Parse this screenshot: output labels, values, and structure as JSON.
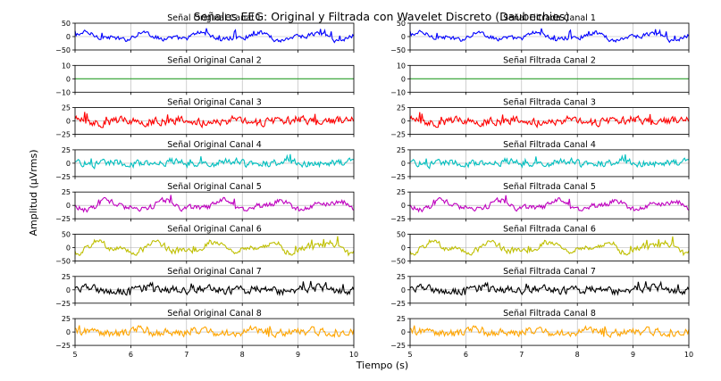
{
  "figure": {
    "suptitle": "Señales EEG: Original y Filtrada con Wavelet Discreto (Daubechies)",
    "xlabel": "Tiempo (s)",
    "ylabel": "Amplitud (μVrms)"
  },
  "chart_data": {
    "type": "line",
    "x_range": [
      5,
      10
    ],
    "x_ticks": [
      "5",
      "6",
      "7",
      "8",
      "9",
      "10"
    ],
    "grid": true,
    "panels": [
      {
        "channel": 1,
        "title_original": "Señal Original Canal 1",
        "title_filtered": "Señal Filtrada Canal 1",
        "color": "#0000ff",
        "ylim": [
          -50,
          50
        ],
        "yticks": [
          "50",
          "0",
          "−50"
        ],
        "amplitude": 22,
        "flat": false,
        "trend": "wave"
      },
      {
        "channel": 2,
        "title_original": "Señal Original Canal 2",
        "title_filtered": "Señal Filtrada Canal 2",
        "color": "#2ca02c",
        "ylim": [
          -10,
          10
        ],
        "yticks": [
          "10",
          "0",
          "−10"
        ],
        "amplitude": 0,
        "flat": true,
        "trend": "flat"
      },
      {
        "channel": 3,
        "title_original": "Señal Original Canal 3",
        "title_filtered": "Señal Filtrada Canal 3",
        "color": "#ff0000",
        "ylim": [
          -25,
          25
        ],
        "yticks": [
          "25",
          "0",
          "−25"
        ],
        "amplitude": 12,
        "flat": false,
        "trend": "noise"
      },
      {
        "channel": 4,
        "title_original": "Señal Original Canal 4",
        "title_filtered": "Señal Filtrada Canal 4",
        "color": "#00bfbf",
        "ylim": [
          -25,
          25
        ],
        "yticks": [
          "25",
          "0",
          "−25"
        ],
        "amplitude": 10,
        "flat": false,
        "trend": "noise"
      },
      {
        "channel": 5,
        "title_original": "Señal Original Canal 5",
        "title_filtered": "Señal Filtrada Canal 5",
        "color": "#bf00bf",
        "ylim": [
          -25,
          25
        ],
        "yticks": [
          "25",
          "0",
          "−25"
        ],
        "amplitude": 13,
        "flat": false,
        "trend": "wave"
      },
      {
        "channel": 6,
        "title_original": "Señal Original Canal 6",
        "title_filtered": "Señal Filtrada Canal 6",
        "color": "#bfbf00",
        "ylim": [
          -50,
          50
        ],
        "yticks": [
          "50",
          "0",
          "−50"
        ],
        "amplitude": 30,
        "flat": false,
        "trend": "wave"
      },
      {
        "channel": 7,
        "title_original": "Señal Original Canal 7",
        "title_filtered": "Señal Filtrada Canal 7",
        "color": "#000000",
        "ylim": [
          -25,
          25
        ],
        "yticks": [
          "25",
          "0",
          "−25"
        ],
        "amplitude": 11,
        "flat": false,
        "trend": "noise"
      },
      {
        "channel": 8,
        "title_original": "Señal Original Canal 8",
        "title_filtered": "Señal Filtrada Canal 8",
        "color": "#ffa500",
        "ylim": [
          -25,
          25
        ],
        "yticks": [
          "25",
          "0",
          "−25"
        ],
        "amplitude": 11,
        "flat": false,
        "trend": "noise"
      }
    ]
  }
}
